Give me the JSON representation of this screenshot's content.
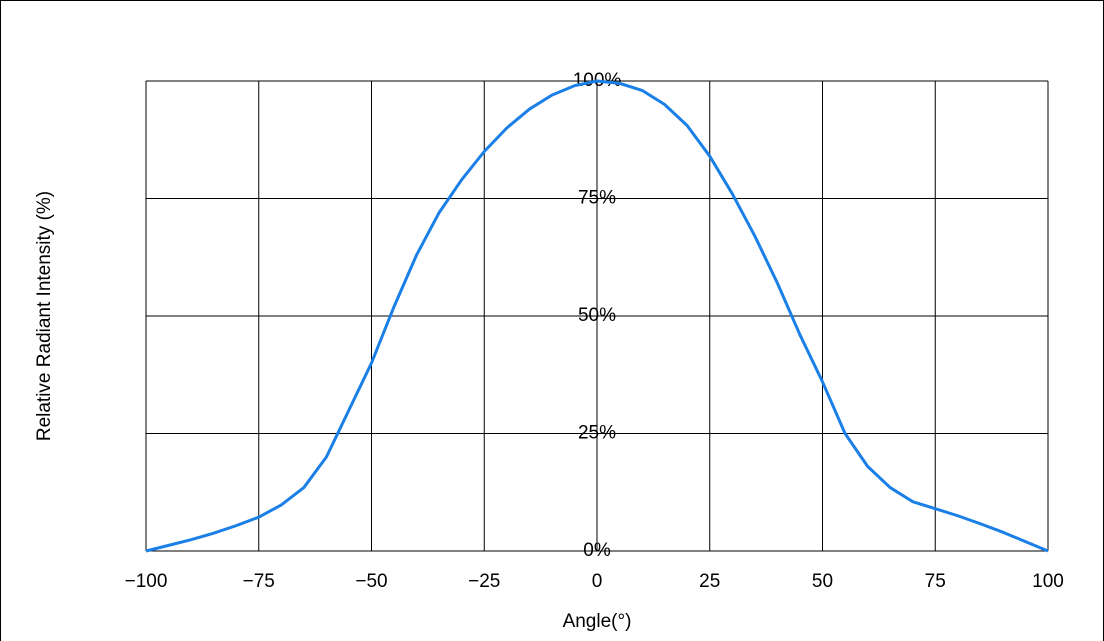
{
  "chart_data": {
    "type": "line",
    "xlabel": "Angle(°)",
    "ylabel": "Relative Radiant Intensity (%)",
    "x": [
      -100,
      -95,
      -90,
      -85,
      -80,
      -75,
      -70,
      -65,
      -60,
      -55,
      -50,
      -45,
      -40,
      -35,
      -30,
      -25,
      -20,
      -15,
      -10,
      -5,
      0,
      5,
      10,
      15,
      20,
      25,
      30,
      35,
      40,
      45,
      50,
      55,
      60,
      65,
      70,
      75,
      80,
      85,
      90,
      95,
      100
    ],
    "series": [
      {
        "color": "#1a7fe6",
        "values": [
          0,
          1.2,
          2.4,
          3.8,
          5.4,
          7.2,
          9.8,
          13.5,
          20,
          30,
          40,
          52,
          63,
          72,
          79,
          85,
          90,
          94,
          97,
          99,
          100,
          99.5,
          98,
          95,
          90.5,
          84,
          76,
          67,
          57,
          46,
          36,
          25,
          18,
          13.5,
          10.5,
          9,
          7.5,
          5.8,
          4,
          2,
          0
        ]
      }
    ],
    "xlim": [
      -100,
      100
    ],
    "xticks": [
      {
        "value": -100,
        "label": "−100"
      },
      {
        "value": -75,
        "label": "−75"
      },
      {
        "value": -50,
        "label": "−50"
      },
      {
        "value": -25,
        "label": "−25"
      },
      0,
      25,
      50,
      75,
      100
    ],
    "ylim": [
      0,
      100
    ],
    "yticks": [
      {
        "value": 0,
        "label": "0%"
      },
      {
        "value": 25,
        "label": "25%"
      },
      {
        "value": 50,
        "label": "50%"
      },
      {
        "value": 75,
        "label": "75%"
      },
      {
        "value": 100,
        "label": "100%"
      }
    ],
    "grid": true
  }
}
